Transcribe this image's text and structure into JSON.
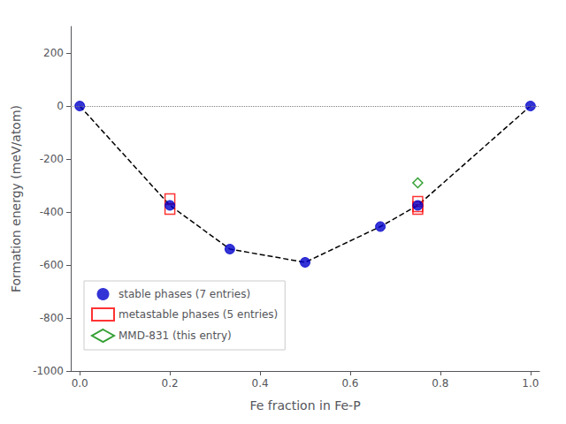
{
  "chart_data": {
    "type": "scatter",
    "xlabel": "Fe fraction in Fe-P",
    "ylabel": "Formation energy (meV/atom)",
    "xlim": [
      -0.02,
      1.02
    ],
    "ylim": [
      -1000,
      300
    ],
    "xticks": [
      {
        "value": 0,
        "label": "0.0"
      },
      0.2,
      0.4,
      0.6,
      0.8,
      {
        "value": 1,
        "label": "1.0"
      }
    ],
    "yticks": [
      -1000,
      -800,
      -600,
      -400,
      -200,
      0,
      200
    ],
    "grid": false,
    "legend": "left",
    "series": [
      {
        "name": "stable phases (7 entries)",
        "type": "scatter",
        "marker": "circle",
        "color": "#0000cc",
        "x": [
          0.0,
          0.2,
          0.333,
          0.5,
          0.667,
          0.75,
          1.0
        ],
        "values": [
          0,
          -375,
          -540,
          -590,
          -455,
          -375,
          0
        ]
      },
      {
        "name": "metastable phases (5 entries)",
        "type": "scatter",
        "marker": "square_open",
        "color": "#ff0000",
        "x": [
          0.2,
          0.2,
          0.75,
          0.75,
          0.75
        ],
        "values": [
          -350,
          -390,
          -360,
          -380,
          -390
        ]
      },
      {
        "name": "MMD-831 (this entry)",
        "type": "scatter",
        "marker": "diamond_open",
        "color": "#008800",
        "x": [
          0.75
        ],
        "values": [
          -290
        ]
      },
      {
        "type": "line",
        "line_style": "dashed",
        "color": "black",
        "x": [
          0.0,
          0.2,
          0.333,
          0.5,
          0.667,
          0.75,
          1.0
        ],
        "values": [
          0,
          -375,
          -540,
          -590,
          -455,
          -375,
          0
        ]
      },
      {
        "type": "hline",
        "line_style": "dotted",
        "color": "gray",
        "values": [
          0
        ]
      }
    ]
  }
}
